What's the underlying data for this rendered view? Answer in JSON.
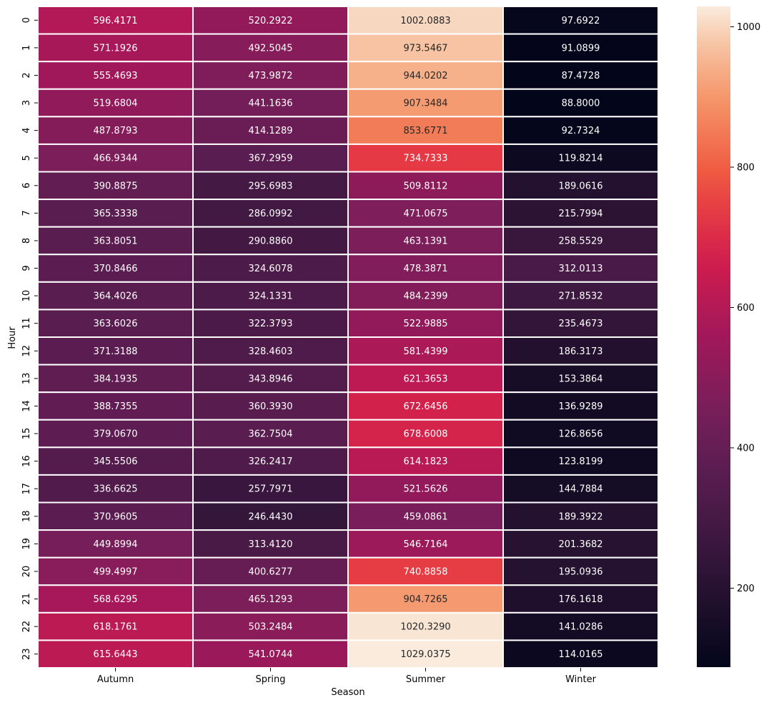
{
  "chart_data": {
    "type": "heatmap",
    "xlabel": "Season",
    "ylabel": "Hour",
    "x_categories": [
      "Autumn",
      "Spring",
      "Summer",
      "Winter"
    ],
    "y_categories": [
      "0",
      "1",
      "2",
      "3",
      "4",
      "5",
      "6",
      "7",
      "8",
      "9",
      "10",
      "11",
      "12",
      "13",
      "14",
      "15",
      "16",
      "17",
      "18",
      "19",
      "20",
      "21",
      "22",
      "23"
    ],
    "value_format": "4 decimals",
    "values": [
      [
        596.4171,
        520.2922,
        1002.0883,
        97.6922
      ],
      [
        571.1926,
        492.5045,
        973.5467,
        91.0899
      ],
      [
        555.4693,
        473.9872,
        944.0202,
        87.4728
      ],
      [
        519.6804,
        441.1636,
        907.3484,
        88.8
      ],
      [
        487.8793,
        414.1289,
        853.6771,
        92.7324
      ],
      [
        466.9344,
        367.2959,
        734.7333,
        119.8214
      ],
      [
        390.8875,
        295.6983,
        509.8112,
        189.0616
      ],
      [
        365.3338,
        286.0992,
        471.0675,
        215.7994
      ],
      [
        363.8051,
        290.886,
        463.1391,
        258.5529
      ],
      [
        370.8466,
        324.6078,
        478.3871,
        312.0113
      ],
      [
        364.4026,
        324.1331,
        484.2399,
        271.8532
      ],
      [
        363.6026,
        322.3793,
        522.9885,
        235.4673
      ],
      [
        371.3188,
        328.4603,
        581.4399,
        186.3173
      ],
      [
        384.1935,
        343.8946,
        621.3653,
        153.3864
      ],
      [
        388.7355,
        360.393,
        672.6456,
        136.9289
      ],
      [
        379.067,
        362.7504,
        678.6008,
        126.8656
      ],
      [
        345.5506,
        326.2417,
        614.1823,
        123.8199
      ],
      [
        336.6625,
        257.7971,
        521.5626,
        144.7884
      ],
      [
        370.9605,
        246.443,
        459.0861,
        189.3922
      ],
      [
        449.8994,
        313.412,
        546.7164,
        201.3682
      ],
      [
        499.4997,
        400.6277,
        740.8858,
        195.0936
      ],
      [
        568.6295,
        465.1293,
        904.7265,
        176.1618
      ],
      [
        618.1761,
        503.2484,
        1020.329,
        141.0286
      ],
      [
        615.6443,
        541.0744,
        1029.0375,
        114.0165
      ]
    ],
    "colormap": "rocket",
    "colorbar": {
      "vmin": 87.4728,
      "vmax": 1029.0375,
      "ticks": [
        200,
        400,
        600,
        800,
        1000
      ]
    },
    "grid_lines": true,
    "annotations": true
  }
}
